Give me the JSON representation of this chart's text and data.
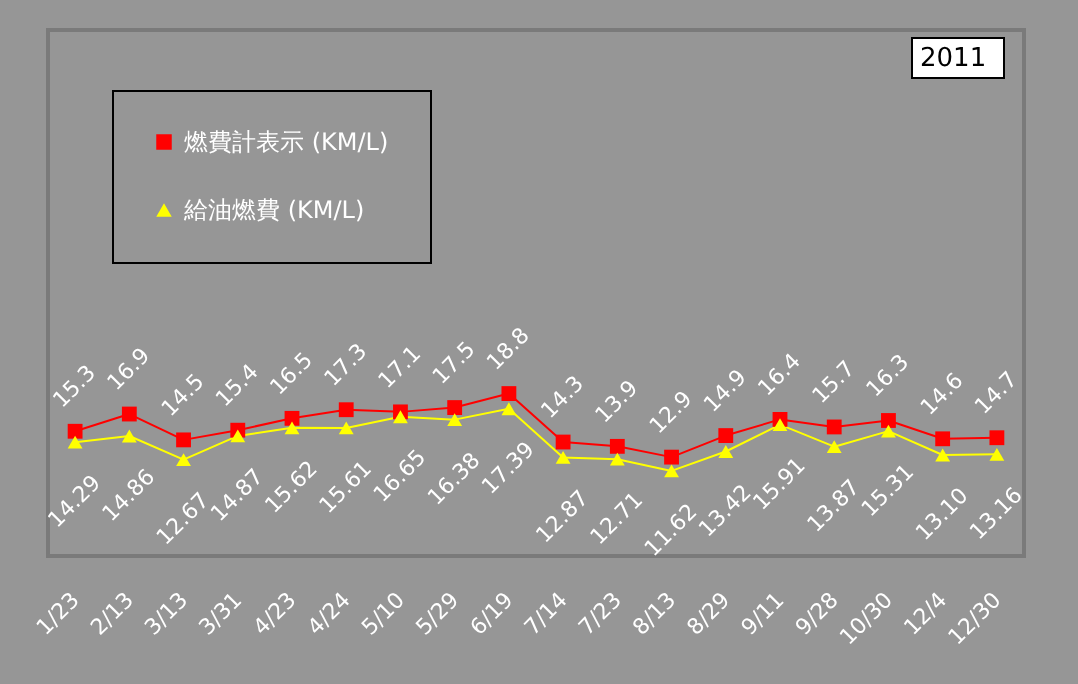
{
  "chart_data": {
    "type": "line",
    "title": "2011",
    "categories": [
      "1/23",
      "2/13",
      "3/13",
      "3/31",
      "4/23",
      "4/24",
      "5/10",
      "5/29",
      "6/19",
      "7/14",
      "7/23",
      "8/13",
      "8/29",
      "9/11",
      "9/28",
      "10/30",
      "12/4",
      "12/30"
    ],
    "series": [
      {
        "name": "燃費計表示 (KM/L)",
        "color": "#ff0000",
        "marker": "square",
        "values": [
          15.3,
          16.9,
          14.5,
          15.4,
          16.5,
          17.3,
          17.1,
          17.5,
          18.8,
          14.3,
          13.9,
          12.9,
          14.9,
          16.4,
          15.7,
          16.3,
          14.6,
          14.7
        ],
        "value_labels": [
          "15.3",
          "16.9",
          "14.5",
          "15.4",
          "16.5",
          "17.3",
          "17.1",
          "17.5",
          "18.8",
          "14.3",
          "13.9",
          "12.9",
          "14.9",
          "16.4",
          "15.7",
          "16.3",
          "14.6",
          "14.7"
        ]
      },
      {
        "name": "給油燃費 (KM/L)",
        "color": "#ffff00",
        "marker": "triangle",
        "values": [
          14.29,
          14.86,
          12.67,
          14.87,
          15.62,
          15.61,
          16.65,
          16.38,
          17.39,
          12.87,
          12.71,
          11.62,
          13.42,
          15.91,
          13.87,
          15.31,
          13.1,
          13.16
        ],
        "value_labels": [
          "14.29",
          "14.86",
          "12.67",
          "14.87",
          "15.62",
          "15.61",
          "16.65",
          "16.38",
          "17.39",
          "12.87",
          "12.71",
          "11.62",
          "13.42",
          "15.91",
          "13.87",
          "15.31",
          "13.10",
          "13.16"
        ]
      }
    ],
    "legend": "top left",
    "line_style": "solid"
  }
}
